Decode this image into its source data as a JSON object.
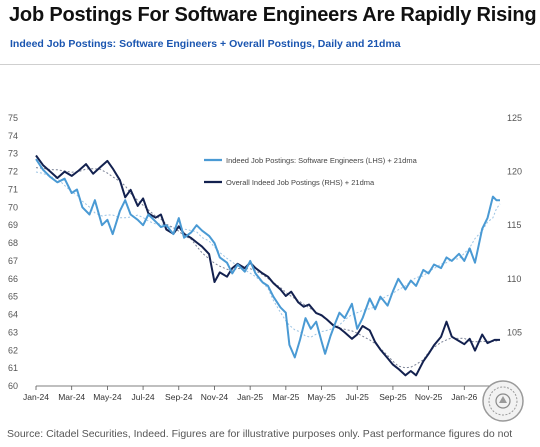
{
  "header": {
    "title": "Job Postings For Software Engineers Are Rapidly Rising",
    "subtitle": "Indeed Job Postings: Software Engineers + Overall Postings, Daily and 21dma"
  },
  "footer": {
    "source": "Source: Citadel Securities, Indeed. Figures are for illustrative purposes only. Past performance figures do not"
  },
  "colors": {
    "software": "#4a9ad4",
    "overall": "#13214f",
    "ma_software": "#9cc4e4",
    "ma_overall": "#7a8296"
  },
  "chart_data": {
    "type": "line",
    "title": "Job Postings For Software Engineers Are Rapidly Rising",
    "subtitle": "Indeed Job Postings: Software Engineers + Overall Postings, Daily and 21dma",
    "x_ticks": [
      "Jan-24",
      "Mar-24",
      "May-24",
      "Jul-24",
      "Sep-24",
      "Nov-24",
      "Jan-25",
      "Mar-25",
      "May-25",
      "Jul-25",
      "Sep-25",
      "Nov-25",
      "Jan-26"
    ],
    "x_range_months": [
      0,
      26
    ],
    "y_left": {
      "min": 60,
      "max": 75,
      "ticks": [
        60,
        61,
        62,
        63,
        64,
        65,
        66,
        67,
        68,
        69,
        70,
        71,
        72,
        73,
        74,
        75
      ]
    },
    "y_right": {
      "min": 100,
      "max": 125,
      "ticks": [
        105,
        110,
        115,
        120,
        125
      ]
    },
    "grid": false,
    "legend_position": "top-center",
    "series": [
      {
        "name": "Indeed Job Postings: Software Engineers (LHS) + 21dma",
        "axis": "left",
        "points": [
          [
            0,
            72.7
          ],
          [
            0.4,
            72.1
          ],
          [
            0.8,
            71.7
          ],
          [
            1.2,
            71.4
          ],
          [
            1.6,
            71.6
          ],
          [
            2,
            70.8
          ],
          [
            2.3,
            71.0
          ],
          [
            2.6,
            70.0
          ],
          [
            3,
            69.6
          ],
          [
            3.3,
            70.4
          ],
          [
            3.7,
            69.0
          ],
          [
            4,
            69.3
          ],
          [
            4.3,
            68.5
          ],
          [
            4.7,
            69.8
          ],
          [
            5,
            70.4
          ],
          [
            5.3,
            69.6
          ],
          [
            5.7,
            69.3
          ],
          [
            6,
            69.0
          ],
          [
            6.3,
            69.6
          ],
          [
            6.7,
            69.2
          ],
          [
            7,
            68.9
          ],
          [
            7.3,
            69.0
          ],
          [
            7.7,
            68.5
          ],
          [
            8,
            69.4
          ],
          [
            8.3,
            68.3
          ],
          [
            8.7,
            68.6
          ],
          [
            9,
            69.0
          ],
          [
            9.3,
            68.7
          ],
          [
            9.7,
            68.4
          ],
          [
            10,
            68.0
          ],
          [
            10.3,
            67.2
          ],
          [
            10.7,
            66.9
          ],
          [
            11,
            66.3
          ],
          [
            11.3,
            66.8
          ],
          [
            11.7,
            66.4
          ],
          [
            12,
            67.0
          ],
          [
            12.3,
            66.3
          ],
          [
            12.7,
            65.8
          ],
          [
            13,
            65.6
          ],
          [
            13.3,
            65.0
          ],
          [
            13.7,
            64.4
          ],
          [
            14,
            64.1
          ],
          [
            14.2,
            62.3
          ],
          [
            14.5,
            61.6
          ],
          [
            14.8,
            62.6
          ],
          [
            15.1,
            63.8
          ],
          [
            15.4,
            63.2
          ],
          [
            15.7,
            63.6
          ],
          [
            16,
            62.5
          ],
          [
            16.2,
            61.8
          ],
          [
            16.5,
            62.8
          ],
          [
            16.8,
            63.6
          ],
          [
            17,
            64.1
          ],
          [
            17.3,
            63.8
          ],
          [
            17.7,
            64.6
          ],
          [
            18,
            63.2
          ],
          [
            18.3,
            63.8
          ],
          [
            18.7,
            64.9
          ],
          [
            19,
            64.3
          ],
          [
            19.3,
            65.0
          ],
          [
            19.7,
            64.5
          ],
          [
            20,
            65.3
          ],
          [
            20.3,
            66.0
          ],
          [
            20.7,
            65.4
          ],
          [
            21,
            65.9
          ],
          [
            21.3,
            65.6
          ],
          [
            21.7,
            66.5
          ],
          [
            22,
            66.3
          ],
          [
            22.3,
            66.8
          ],
          [
            22.7,
            66.6
          ],
          [
            23,
            67.2
          ],
          [
            23.3,
            67.0
          ],
          [
            23.7,
            67.4
          ],
          [
            24,
            67.0
          ],
          [
            24.3,
            67.7
          ],
          [
            24.6,
            66.9
          ],
          [
            25,
            68.8
          ],
          [
            25.3,
            69.4
          ],
          [
            25.6,
            70.6
          ],
          [
            25.8,
            70.4
          ],
          [
            26,
            70.4
          ]
        ]
      },
      {
        "name": "Overall Indeed Job Postings (RHS) + 21dma",
        "axis": "right",
        "points": [
          [
            0,
            121.5
          ],
          [
            0.4,
            120.6
          ],
          [
            0.8,
            120.0
          ],
          [
            1.2,
            119.4
          ],
          [
            1.6,
            120.0
          ],
          [
            2,
            119.6
          ],
          [
            2.4,
            120.1
          ],
          [
            2.8,
            120.7
          ],
          [
            3.2,
            119.8
          ],
          [
            3.6,
            120.4
          ],
          [
            4,
            121.0
          ],
          [
            4.3,
            120.3
          ],
          [
            4.7,
            119.2
          ],
          [
            5,
            117.6
          ],
          [
            5.3,
            118.3
          ],
          [
            5.7,
            116.8
          ],
          [
            6,
            117.5
          ],
          [
            6.3,
            116.1
          ],
          [
            6.7,
            115.7
          ],
          [
            7,
            116.0
          ],
          [
            7.3,
            114.6
          ],
          [
            7.7,
            114.2
          ],
          [
            8,
            114.9
          ],
          [
            8.3,
            114.2
          ],
          [
            8.7,
            113.8
          ],
          [
            9,
            113.4
          ],
          [
            9.3,
            113.0
          ],
          [
            9.7,
            112.3
          ],
          [
            10,
            109.7
          ],
          [
            10.3,
            110.6
          ],
          [
            10.7,
            110.2
          ],
          [
            11,
            111.0
          ],
          [
            11.3,
            111.4
          ],
          [
            11.7,
            111.0
          ],
          [
            12,
            111.5
          ],
          [
            12.3,
            111.0
          ],
          [
            12.7,
            110.5
          ],
          [
            13,
            110.2
          ],
          [
            13.3,
            109.6
          ],
          [
            13.7,
            109.0
          ],
          [
            14,
            108.4
          ],
          [
            14.3,
            108.8
          ],
          [
            14.7,
            107.8
          ],
          [
            15,
            107.4
          ],
          [
            15.3,
            107.6
          ],
          [
            15.7,
            106.8
          ],
          [
            16,
            106.6
          ],
          [
            16.3,
            106.2
          ],
          [
            16.7,
            105.6
          ],
          [
            17,
            105.4
          ],
          [
            17.3,
            105.0
          ],
          [
            17.7,
            104.4
          ],
          [
            18,
            104.8
          ],
          [
            18.3,
            105.6
          ],
          [
            18.7,
            105.2
          ],
          [
            19,
            104.1
          ],
          [
            19.3,
            103.4
          ],
          [
            19.7,
            102.6
          ],
          [
            20,
            102.0
          ],
          [
            20.3,
            101.6
          ],
          [
            20.7,
            101.0
          ],
          [
            21,
            101.4
          ],
          [
            21.3,
            101.0
          ],
          [
            21.7,
            102.3
          ],
          [
            22,
            103.0
          ],
          [
            22.3,
            103.8
          ],
          [
            22.7,
            104.6
          ],
          [
            23,
            106.0
          ],
          [
            23.3,
            104.6
          ],
          [
            23.7,
            104.2
          ],
          [
            24,
            103.9
          ],
          [
            24.3,
            104.4
          ],
          [
            24.6,
            103.3
          ],
          [
            25,
            104.8
          ],
          [
            25.3,
            104.0
          ],
          [
            25.7,
            104.3
          ],
          [
            26,
            104.3
          ]
        ]
      }
    ]
  }
}
